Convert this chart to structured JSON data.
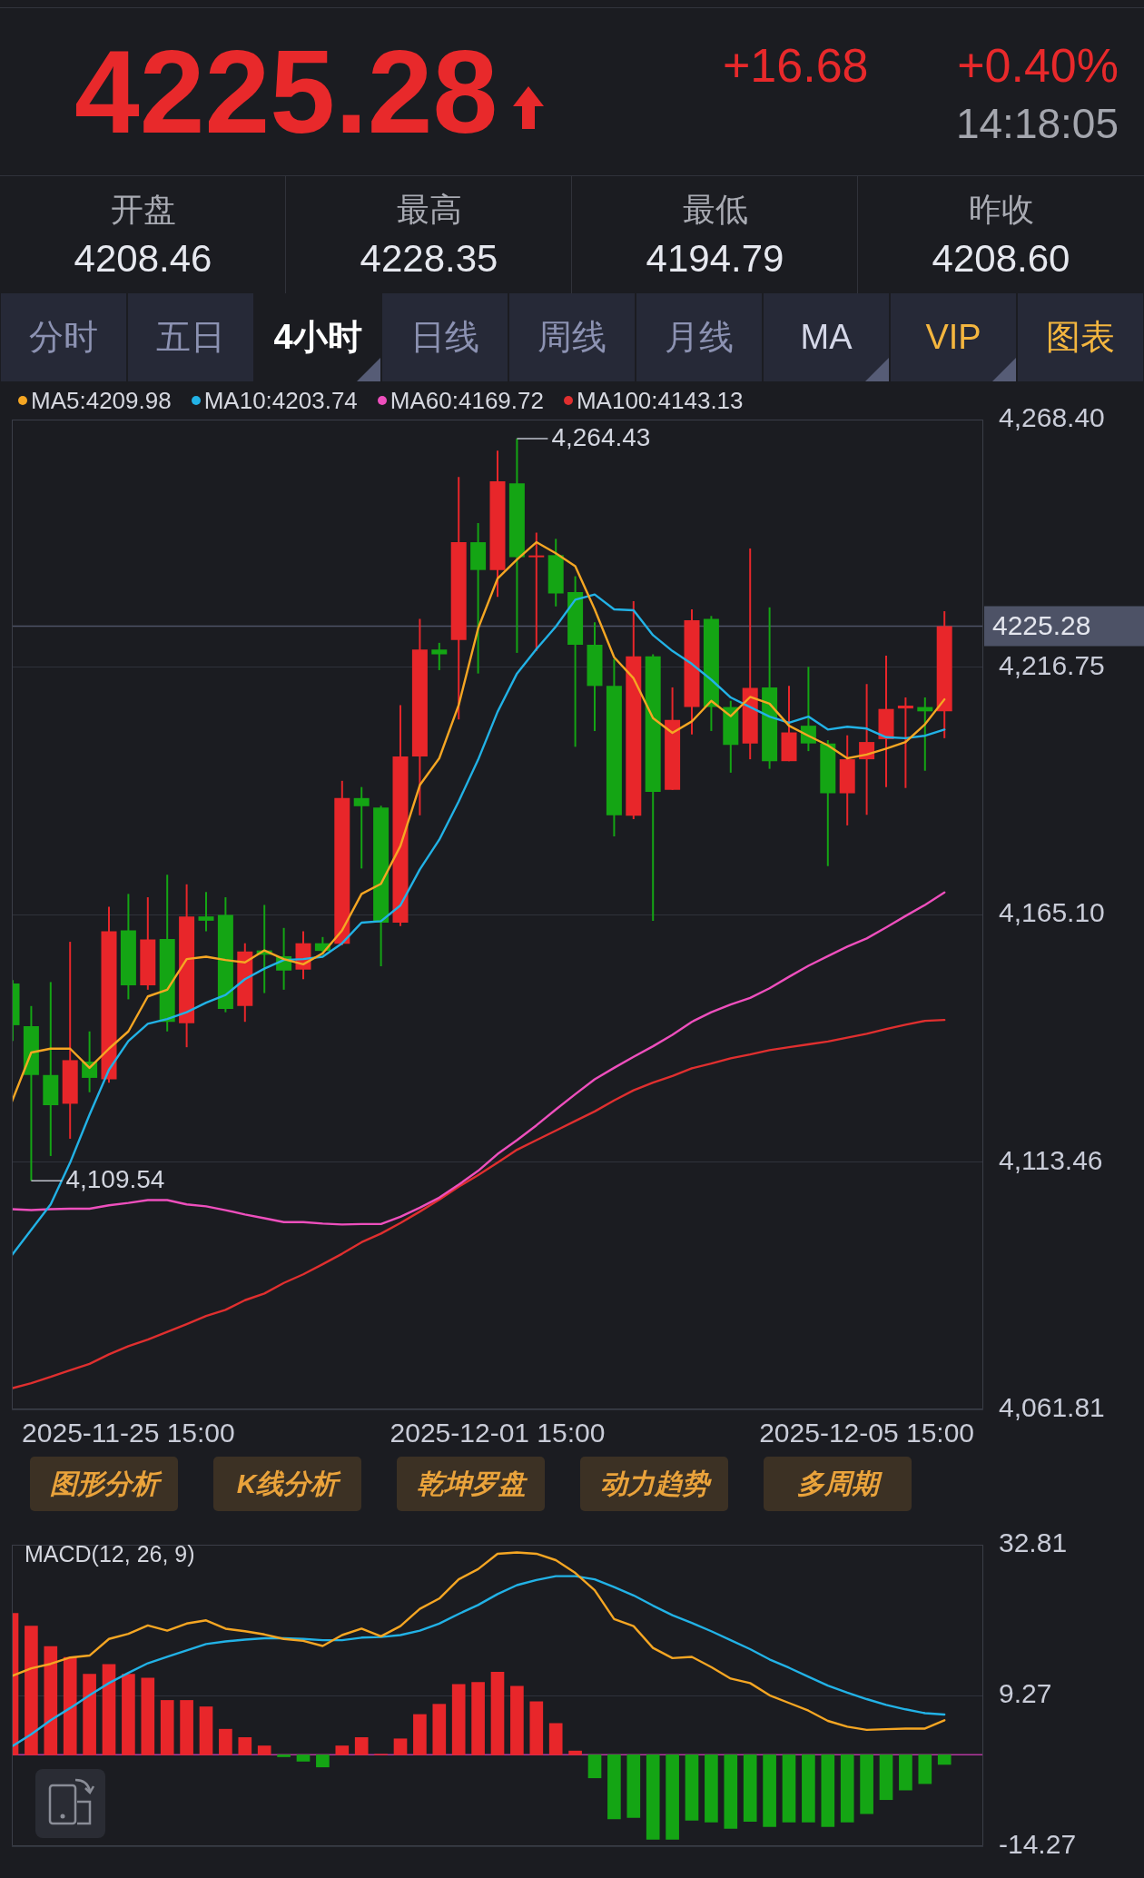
{
  "chart_data": [
    {
      "type": "other",
      "annotations": [
        "4225.28",
        "+16.68",
        "+0.40%",
        "14:18:05",
        "开盘",
        "4208.46",
        "最高",
        "4228.35",
        "最低",
        "4194.79",
        "昨收",
        "4208.60",
        "分时",
        "五日",
        "4小时",
        "日线",
        "周线",
        "月线",
        "MA",
        "VIP",
        "图表"
      ]
    },
    {
      "type": "candlestick",
      "categories": [
        null,
        null,
        null,
        null,
        null,
        null,
        "2025-11-25 15:00",
        null,
        null,
        null,
        null,
        null,
        null,
        null,
        null,
        null,
        null,
        null,
        null,
        null,
        null,
        null,
        null,
        null,
        null,
        "2025-12-01 15:00",
        null,
        null,
        null,
        null,
        null,
        null,
        null,
        null,
        null,
        null,
        null,
        null,
        null,
        null,
        null,
        null,
        null,
        null,
        "2025-12-05 15:00",
        null,
        null,
        null,
        null
      ],
      "ohlc": [
        [
          4150.7,
          4151.4,
          4138.7,
          4142.0
        ],
        [
          4141.8,
          4146.0,
          4109.54,
          4131.6
        ],
        [
          4131.6,
          4151.0,
          4114.7,
          4125.3
        ],
        [
          4125.6,
          4159.4,
          4118.3,
          4134.7
        ],
        [
          4134.4,
          4140.7,
          4128.0,
          4131.0
        ],
        [
          4130.7,
          4166.7,
          4130.0,
          4161.6
        ],
        [
          4161.8,
          4169.4,
          4147.4,
          4150.3
        ],
        [
          4150.3,
          4168.7,
          4149.4,
          4159.9
        ],
        [
          4160.0,
          4173.4,
          4140.7,
          4142.7
        ],
        [
          4142.4,
          4171.4,
          4137.4,
          4164.7
        ],
        [
          4164.7,
          4169.8,
          4161.6,
          4163.8
        ],
        [
          4165.0,
          4168.7,
          4144.7,
          4145.4
        ],
        [
          4146.0,
          4159.1,
          4142.7,
          4157.4
        ],
        [
          4157.6,
          4167.1,
          4148.7,
          4156.7
        ],
        [
          4156.4,
          4162.3,
          4149.4,
          4153.4
        ],
        [
          4153.6,
          4161.6,
          4151.6,
          4159.1
        ],
        [
          4159.1,
          4160.4,
          4156.7,
          4157.5
        ],
        [
          4159.0,
          4193.0,
          4158.7,
          4189.4
        ],
        [
          4189.4,
          4191.7,
          4174.7,
          4187.7
        ],
        [
          4187.4,
          4187.8,
          4154.3,
          4163.4
        ],
        [
          4163.4,
          4208.8,
          4162.7,
          4198.1
        ],
        [
          4198.1,
          4226.8,
          4185.8,
          4220.4
        ],
        [
          4220.4,
          4221.8,
          4216.1,
          4219.4
        ],
        [
          4222.4,
          4256.4,
          4205.8,
          4242.8
        ],
        [
          4242.8,
          4246.8,
          4215.4,
          4237.0
        ],
        [
          4237.0,
          4261.9,
          4231.4,
          4255.5
        ],
        [
          4255.1,
          4264.43,
          4219.7,
          4239.7
        ],
        [
          4239.7,
          4244.8,
          4220.1,
          4240.0
        ],
        [
          4240.1,
          4243.5,
          4229.4,
          4232.1
        ],
        [
          4232.4,
          4235.7,
          4200.1,
          4221.4
        ],
        [
          4221.4,
          4226.1,
          4203.4,
          4212.8
        ],
        [
          4212.8,
          4218.4,
          4181.4,
          4185.8
        ],
        [
          4185.7,
          4230.5,
          4185.0,
          4219.0
        ],
        [
          4219.0,
          4219.4,
          4163.8,
          4190.7
        ],
        [
          4191.1,
          4212.5,
          4191.1,
          4205.7
        ],
        [
          4208.4,
          4228.8,
          4202.7,
          4226.5
        ],
        [
          4226.8,
          4227.4,
          4203.4,
          4208.4
        ],
        [
          4208.4,
          4209.7,
          4194.7,
          4200.5
        ],
        [
          4200.8,
          4241.5,
          4197.5,
          4212.4
        ],
        [
          4212.5,
          4229.2,
          4195.5,
          4197.1
        ],
        [
          4197.1,
          4212.8,
          4197.1,
          4203.1
        ],
        [
          4204.5,
          4216.8,
          4199.2,
          4200.8
        ],
        [
          4200.8,
          4201.5,
          4175.2,
          4190.4
        ],
        [
          4190.4,
          4202.5,
          4183.7,
          4197.5
        ],
        [
          4197.5,
          4213.2,
          4185.9,
          4201.1
        ],
        [
          4201.7,
          4219.1,
          4191.7,
          4208.0
        ],
        [
          4208.1,
          4210.4,
          4191.5,
          4208.7
        ],
        [
          4208.4,
          4210.4,
          4195.1,
          4207.5
        ],
        [
          4207.5,
          4228.4,
          4201.9,
          4225.28
        ]
      ],
      "colors": [
        "#14a514",
        "#14a514",
        "#14a514",
        "#e8262a",
        "#14a514",
        "#e8262a",
        "#14a514",
        "#e8262a",
        "#14a514",
        "#e8262a",
        "#14a514",
        "#14a514",
        "#e8262a",
        "#14a514",
        "#14a514",
        "#e8262a",
        "#14a514",
        "#e8262a",
        "#14a514",
        "#14a514",
        "#e8262a",
        "#e8262a",
        "#14a514",
        "#e8262a",
        "#14a514",
        "#e8262a",
        "#14a514",
        "#e8262a",
        "#14a514",
        "#14a514",
        "#14a514",
        "#14a514",
        "#e8262a",
        "#14a514",
        "#e8262a",
        "#e8262a",
        "#14a514",
        "#14a514",
        "#e8262a",
        "#14a514",
        "#e8262a",
        "#14a514",
        "#14a514",
        "#e8262a",
        "#e8262a",
        "#e8262a",
        "#e8262a",
        "#14a514",
        "#e8262a"
      ],
      "series": [
        {
          "name": "MA5:4209.98",
          "type": "line",
          "color": "#f5a623",
          "values": [
            4126.0,
            4136.3,
            4137.1,
            4137.1,
            4133.1,
            4137.1,
            4140.7,
            4148.0,
            4149.4,
            4155.8,
            4156.3,
            4155.6,
            4155.1,
            4157.6,
            4155.8,
            4154.7,
            4157.0,
            4161.8,
            4169.4,
            4171.5,
            4179.4,
            4192.1,
            4197.7,
            4208.8,
            4224.8,
            4235.2,
            4239.2,
            4242.8,
            4240.5,
            4237.8,
            4228.8,
            4218.8,
            4214.4,
            4206.1,
            4203.0,
            4205.4,
            4209.7,
            4206.5,
            4210.5,
            4209.1,
            4204.5,
            4202.4,
            4200.4,
            4197.7,
            4198.5,
            4199.7,
            4201.1,
            4204.8,
            4210.0
          ]
        },
        {
          "name": "MA10:4203.74",
          "type": "line",
          "color": "#22b2e6",
          "values": [
            4094.0,
            4099.3,
            4104.6,
            4113.3,
            4123.3,
            4132.7,
            4138.7,
            4142.3,
            4143.3,
            4144.7,
            4146.7,
            4148.3,
            4151.6,
            4153.8,
            4155.6,
            4155.8,
            4156.3,
            4159.1,
            4163.4,
            4163.7,
            4167.0,
            4174.5,
            4180.7,
            4188.7,
            4197.4,
            4207.4,
            4215.4,
            4220.5,
            4225.2,
            4230.8,
            4231.9,
            4228.8,
            4228.6,
            4223.4,
            4220.1,
            4217.4,
            4214.1,
            4210.4,
            4208.4,
            4206.4,
            4205.1,
            4206.4,
            4203.7,
            4204.3,
            4203.9,
            4202.1,
            4201.9,
            4202.4,
            4203.7
          ]
        },
        {
          "name": "MA60:4169.72",
          "type": "line",
          "color": "#ee4fbd",
          "values": [
            4103.6,
            4103.4,
            4103.6,
            4103.7,
            4103.7,
            4104.4,
            4104.9,
            4105.5,
            4105.5,
            4104.6,
            4104.2,
            4103.4,
            4102.5,
            4101.7,
            4100.9,
            4100.9,
            4100.6,
            4100.4,
            4100.5,
            4100.5,
            4102.0,
            4103.9,
            4106.0,
            4108.7,
            4111.6,
            4115.1,
            4118.0,
            4121.1,
            4124.4,
            4127.6,
            4130.7,
            4133.1,
            4135.4,
            4137.6,
            4140.0,
            4142.7,
            4144.7,
            4146.3,
            4147.7,
            4149.7,
            4152.1,
            4154.4,
            4156.4,
            4158.4,
            4160.1,
            4162.4,
            4164.8,
            4167.1,
            4169.7
          ]
        },
        {
          "name": "MA100:4143.13",
          "type": "line",
          "color": "#e02f2f",
          "values": [
            4066.2,
            4067.3,
            4068.6,
            4070.0,
            4071.3,
            4073.3,
            4075.0,
            4076.4,
            4078.0,
            4079.6,
            4081.3,
            4082.6,
            4084.6,
            4086.0,
            4088.2,
            4090.0,
            4092.1,
            4094.3,
            4096.7,
            4098.5,
            4100.7,
            4103.1,
            4105.6,
            4108.3,
            4110.7,
            4113.3,
            4116.0,
            4118.0,
            4120.0,
            4122.0,
            4124.0,
            4126.3,
            4128.4,
            4130.0,
            4131.4,
            4133.0,
            4134.0,
            4135.1,
            4135.9,
            4136.8,
            4137.4,
            4138.0,
            4138.6,
            4139.4,
            4140.2,
            4141.2,
            4142.1,
            4142.9,
            4143.1
          ]
        }
      ],
      "ylim": [
        4061.81,
        4268.4
      ],
      "yticks": [
        {
          "value": 4061.81,
          "label": "4,061.81"
        },
        {
          "value": 4113.46,
          "label": "4,113.46"
        },
        {
          "value": 4165.1,
          "label": "4,165.10"
        },
        {
          "value": 4216.75,
          "label": "4,216.75"
        },
        {
          "value": 4268.4,
          "label": "4,268.40"
        }
      ],
      "grid": "y",
      "legend": "top left",
      "marker": "none",
      "ref_lines": [
        {
          "axis": "y",
          "value": 4225.28,
          "label": "4225.28",
          "color": "#4d5266"
        }
      ],
      "annotations": [
        "4,264.43",
        "4,109.54"
      ]
    },
    {
      "type": "other",
      "annotations": [
        "图形分析",
        "K线分析",
        "乾坤罗盘",
        "动力趋势",
        "多周期"
      ]
    },
    {
      "type": "bar",
      "title": "MACD(12, 26, 9)",
      "categories": [
        null,
        null,
        null,
        null,
        null,
        null,
        null,
        null,
        null,
        null,
        null,
        null,
        null,
        null,
        null,
        null,
        null,
        null,
        null,
        null,
        null,
        null,
        null,
        null,
        null,
        null,
        null,
        null,
        null,
        null,
        null,
        null,
        null,
        null,
        null,
        null,
        null,
        null,
        null,
        null,
        null,
        null,
        null,
        null,
        null,
        null,
        null,
        null,
        null
      ],
      "series": [
        {
          "type": "bar",
          "colors": [
            "#e8262a",
            "#e8262a",
            "#e8262a",
            "#e8262a",
            "#e8262a",
            "#e8262a",
            "#e8262a",
            "#e8262a",
            "#e8262a",
            "#e8262a",
            "#e8262a",
            "#e8262a",
            "#e8262a",
            "#e8262a",
            "#14a514",
            "#14a514",
            "#14a514",
            "#e8262a",
            "#e8262a",
            "#e8262a",
            "#e8262a",
            "#e8262a",
            "#e8262a",
            "#e8262a",
            "#e8262a",
            "#e8262a",
            "#e8262a",
            "#e8262a",
            "#e8262a",
            "#e8262a",
            "#14a514",
            "#14a514",
            "#14a514",
            "#14a514",
            "#14a514",
            "#14a514",
            "#14a514",
            "#14a514",
            "#14a514",
            "#14a514",
            "#14a514",
            "#14a514",
            "#14a514",
            "#14a514",
            "#14a514",
            "#14a514",
            "#14a514",
            "#14a514",
            "#14a514"
          ],
          "values": [
            22.1,
            20.1,
            16.9,
            15.2,
            12.6,
            14.1,
            12.6,
            12.0,
            8.5,
            8.5,
            7.5,
            4.0,
            2.7,
            1.4,
            -0.3,
            -1.0,
            -1.9,
            1.4,
            2.7,
            0.1,
            2.5,
            6.3,
            7.9,
            11.0,
            11.3,
            12.9,
            10.7,
            8.3,
            4.9,
            0.6,
            -3.6,
            -10.0,
            -9.8,
            -13.2,
            -13.2,
            -10.2,
            -10.5,
            -11.5,
            -10.4,
            -11.2,
            -10.5,
            -10.5,
            -11.2,
            -10.5,
            -9.2,
            -7.0,
            -5.5,
            -4.5,
            -1.5
          ]
        },
        {
          "type": "line",
          "color": "#f5a623",
          "values": [
            12.3,
            13.5,
            14.2,
            15.2,
            15.5,
            18.1,
            18.9,
            20.2,
            19.4,
            20.5,
            21.0,
            19.7,
            19.3,
            18.8,
            18.1,
            17.8,
            17.0,
            18.7,
            19.7,
            18.5,
            20.1,
            22.8,
            24.4,
            27.4,
            29.0,
            31.4,
            31.6,
            31.4,
            30.4,
            28.4,
            25.7,
            21.2,
            20.1,
            16.7,
            15.1,
            15.3,
            13.7,
            11.9,
            11.2,
            9.3,
            8.1,
            6.9,
            5.3,
            4.4,
            3.9,
            4.0,
            4.1,
            4.1,
            5.4
          ]
        },
        {
          "type": "line",
          "color": "#22b2e6",
          "values": [
            1.3,
            3.2,
            5.4,
            7.3,
            9.3,
            11.2,
            12.8,
            14.3,
            15.3,
            16.3,
            17.3,
            17.7,
            18.0,
            18.2,
            18.2,
            18.1,
            17.9,
            17.9,
            18.3,
            18.4,
            18.7,
            19.4,
            20.5,
            22.0,
            23.4,
            25.1,
            26.5,
            27.3,
            27.9,
            27.9,
            27.4,
            26.2,
            24.9,
            23.3,
            21.8,
            20.6,
            19.3,
            17.9,
            16.5,
            14.9,
            13.6,
            12.2,
            10.8,
            9.7,
            8.7,
            7.8,
            7.1,
            6.5,
            6.3
          ]
        }
      ],
      "ylim": [
        -14.27,
        32.81
      ],
      "yticks": [
        -14.27,
        9.27,
        32.81
      ],
      "grid": "y",
      "tick_labels": "y",
      "marker": "none",
      "ref_lines": [
        {
          "axis": "y",
          "value": 0,
          "color": "#b4379f"
        }
      ]
    }
  ]
}
